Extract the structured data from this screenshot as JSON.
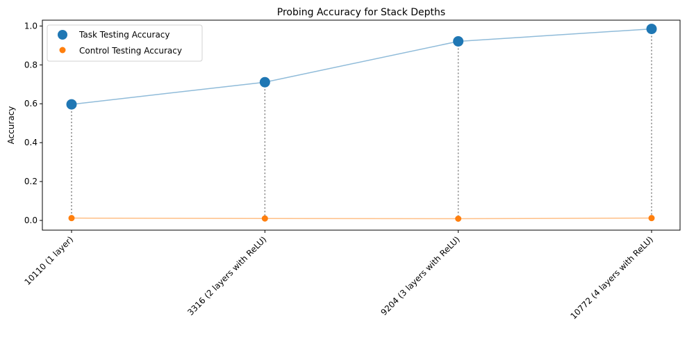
{
  "chart_data": {
    "type": "line",
    "title": "Probing Accuracy for Stack Depths",
    "xlabel": "",
    "ylabel": "Accuracy",
    "categories": [
      "10110 (1 layer)",
      "3316 (2 layers with ReLU)",
      "9204 (3 layers with ReLU)",
      "10772 (4 layers with ReLU)"
    ],
    "series": [
      {
        "name": "Task Testing Accuracy",
        "values": [
          0.597,
          0.711,
          0.921,
          0.985
        ],
        "color": "#1f77b4"
      },
      {
        "name": "Control Testing Accuracy",
        "values": [
          0.012,
          0.01,
          0.009,
          0.012
        ],
        "color": "#ff7f0e"
      }
    ],
    "ylim": [
      -0.05,
      1.03
    ],
    "yticks": [
      0.0,
      0.2,
      0.4,
      0.6,
      0.8,
      1.0
    ],
    "ytick_labels": [
      "0.0",
      "0.2",
      "0.4",
      "0.6",
      "0.8",
      "1.0"
    ],
    "grid": false,
    "legend_position": "top-left",
    "connector_lines": "dotted-gray"
  }
}
